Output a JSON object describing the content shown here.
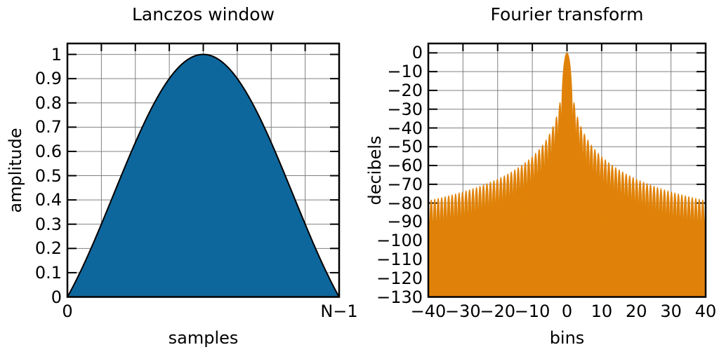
{
  "figure": {
    "background": "#ffffff",
    "grid_color": "#808080",
    "border_color": "#000000",
    "text_color": "#000000"
  },
  "chart_data": [
    {
      "type": "area",
      "title": "Lanczos window",
      "xlabel": "samples",
      "ylabel": "amplitude",
      "xlim": [
        0,
        1
      ],
      "ylim": [
        0,
        1.045
      ],
      "grid": true,
      "colors": {
        "fill": "#0e679c",
        "outline": "#000000"
      },
      "x_ticks": [
        {
          "value": 0,
          "label": "0"
        },
        {
          "value": 1,
          "label": "N−1"
        }
      ],
      "x_tick_marks": [
        0,
        0.125,
        0.25,
        0.375,
        0.5,
        0.625,
        0.75,
        0.875,
        1
      ],
      "x_gridlines": [
        0.125,
        0.25,
        0.375,
        0.5,
        0.625,
        0.75,
        0.875
      ],
      "y_ticks": [
        {
          "value": 1,
          "label": "1"
        },
        {
          "value": 0.9,
          "label": "0.9"
        },
        {
          "value": 0.8,
          "label": "0.8"
        },
        {
          "value": 0.7,
          "label": "0.7"
        },
        {
          "value": 0.6,
          "label": "0.6"
        },
        {
          "value": 0.5,
          "label": "0.5"
        },
        {
          "value": 0.4,
          "label": "0.4"
        },
        {
          "value": 0.3,
          "label": "0.3"
        },
        {
          "value": 0.2,
          "label": "0.2"
        },
        {
          "value": 0.1,
          "label": "0.1"
        },
        {
          "value": 0,
          "label": "0"
        }
      ],
      "curve": {
        "formula": "w(x) = sinc(2x − 1), x = n/(N−1), 0 ≤ x ≤ 1",
        "points_hint": 800,
        "key_points": {
          "x": [
            0,
            0.125,
            0.25,
            0.375,
            0.5,
            0.625,
            0.75,
            0.875,
            1
          ],
          "y": [
            0,
            0.3001,
            0.6366,
            0.9003,
            1.0,
            0.9003,
            0.6366,
            0.3001,
            0
          ]
        }
      }
    },
    {
      "type": "area",
      "title": "Fourier transform",
      "xlabel": "bins",
      "ylabel": "decibels",
      "xlim": [
        -40,
        40
      ],
      "ylim": [
        -130,
        5
      ],
      "grid": true,
      "colors": {
        "fill": "#e08209"
      },
      "x_ticks": [
        {
          "value": -40,
          "label": "−40"
        },
        {
          "value": -30,
          "label": "−30"
        },
        {
          "value": -20,
          "label": "−20"
        },
        {
          "value": -10,
          "label": "−10"
        },
        {
          "value": 0,
          "label": "0"
        },
        {
          "value": 10,
          "label": "10"
        },
        {
          "value": 20,
          "label": "20"
        },
        {
          "value": 30,
          "label": "30"
        },
        {
          "value": 40,
          "label": "40"
        }
      ],
      "y_ticks": [
        {
          "value": 0,
          "label": "0"
        },
        {
          "value": -10,
          "label": "−10"
        },
        {
          "value": -20,
          "label": "−20"
        },
        {
          "value": -30,
          "label": "−30"
        },
        {
          "value": -40,
          "label": "−40"
        },
        {
          "value": -50,
          "label": "−50"
        },
        {
          "value": -60,
          "label": "−60"
        },
        {
          "value": -70,
          "label": "−70"
        },
        {
          "value": -80,
          "label": "−80"
        },
        {
          "value": -90,
          "label": "−90"
        },
        {
          "value": -100,
          "label": "−100"
        },
        {
          "value": -110,
          "label": "−110"
        },
        {
          "value": -120,
          "label": "−120"
        },
        {
          "value": -130,
          "label": "−130"
        }
      ],
      "curve": {
        "formula": "20·log10 |DTFT(w)|, peak-normalized to 0 dB",
        "window_length": 256,
        "samples_per_bin": 16,
        "envelope_key_points": {
          "bins": [
            0,
            1.7,
            3,
            5,
            10,
            20,
            30,
            40
          ],
          "dB": [
            0,
            -26,
            -36,
            -45,
            -57,
            -69,
            -76,
            -82
          ]
        }
      }
    }
  ]
}
